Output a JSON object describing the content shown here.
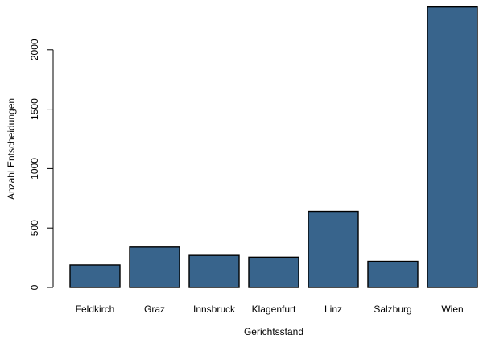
{
  "chart_data": {
    "type": "bar",
    "title": "",
    "xlabel": "Gerichtsstand",
    "ylabel": "Anzahl Entscheidungen",
    "categories": [
      "Feldkirch",
      "Graz",
      "Innsbruck",
      "Klagenfurt",
      "Linz",
      "Salzburg",
      "Wien"
    ],
    "values": [
      190,
      340,
      270,
      255,
      640,
      220,
      2360
    ],
    "ylim": [
      0,
      2360
    ],
    "yticks": [
      0,
      500,
      1000,
      1500,
      2000
    ],
    "ytick_labels": [
      "0",
      "500",
      "1000",
      "1500",
      "2000"
    ],
    "grid": false,
    "legend": "none"
  },
  "colors": {
    "bar_fill": "#38648c",
    "bar_stroke": "#000000",
    "axis": "#000000",
    "background": "#ffffff"
  }
}
